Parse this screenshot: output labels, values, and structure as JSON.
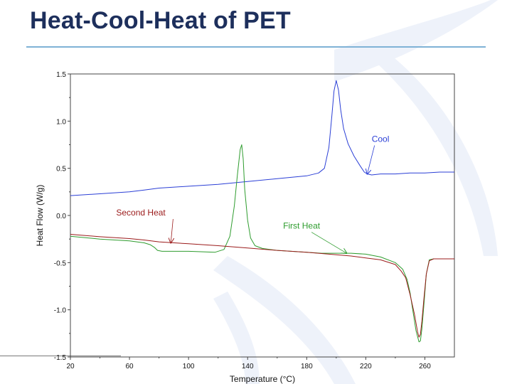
{
  "slide": {
    "title": "Heat-Cool-Heat of PET",
    "accent_color": "#1d2f5c",
    "rule_color": "#7fb2d6"
  },
  "chart_data": {
    "type": "line",
    "title": "",
    "xlabel": "Temperature (°C)",
    "ylabel": "Heat Flow (W/g)",
    "xlim": [
      20,
      280
    ],
    "ylim": [
      -1.5,
      1.5
    ],
    "x_ticks": [
      20,
      60,
      100,
      140,
      180,
      220,
      260
    ],
    "y_ticks": [
      1.5,
      1.0,
      0.5,
      0.0,
      -0.5,
      -1.0,
      -1.5
    ],
    "y_tick_labels": [
      "1.5",
      "1.0",
      "0.5",
      "0.0",
      "-0.5",
      "-1.0",
      "-1.5"
    ],
    "grid": false,
    "series": [
      {
        "name": "Cool",
        "color": "#2b3fd6",
        "points": [
          [
            20,
            0.21
          ],
          [
            40,
            0.23
          ],
          [
            60,
            0.25
          ],
          [
            70,
            0.27
          ],
          [
            80,
            0.29
          ],
          [
            100,
            0.31
          ],
          [
            120,
            0.33
          ],
          [
            140,
            0.36
          ],
          [
            160,
            0.39
          ],
          [
            180,
            0.42
          ],
          [
            188,
            0.45
          ],
          [
            192,
            0.5
          ],
          [
            195,
            0.72
          ],
          [
            197,
            1.05
          ],
          [
            198.5,
            1.32
          ],
          [
            200,
            1.43
          ],
          [
            201.5,
            1.33
          ],
          [
            203,
            1.12
          ],
          [
            205,
            0.92
          ],
          [
            208,
            0.76
          ],
          [
            212,
            0.63
          ],
          [
            216,
            0.53
          ],
          [
            219,
            0.46
          ],
          [
            221,
            0.44
          ],
          [
            224,
            0.43
          ],
          [
            230,
            0.44
          ],
          [
            240,
            0.44
          ],
          [
            250,
            0.45
          ],
          [
            260,
            0.45
          ],
          [
            270,
            0.46
          ],
          [
            280,
            0.46
          ]
        ]
      },
      {
        "name": "First Heat",
        "color": "#2e9c2e",
        "points": [
          [
            20,
            -0.22
          ],
          [
            40,
            -0.25
          ],
          [
            60,
            -0.27
          ],
          [
            70,
            -0.29
          ],
          [
            74,
            -0.31
          ],
          [
            77,
            -0.34
          ],
          [
            79,
            -0.37
          ],
          [
            82,
            -0.38
          ],
          [
            90,
            -0.38
          ],
          [
            100,
            -0.38
          ],
          [
            110,
            -0.385
          ],
          [
            118,
            -0.39
          ],
          [
            124,
            -0.36
          ],
          [
            128,
            -0.22
          ],
          [
            131,
            0.1
          ],
          [
            133,
            0.42
          ],
          [
            135,
            0.7
          ],
          [
            136,
            0.75
          ],
          [
            137,
            0.6
          ],
          [
            138,
            0.28
          ],
          [
            140,
            -0.05
          ],
          [
            142,
            -0.24
          ],
          [
            145,
            -0.32
          ],
          [
            150,
            -0.35
          ],
          [
            160,
            -0.37
          ],
          [
            180,
            -0.39
          ],
          [
            190,
            -0.4
          ],
          [
            200,
            -0.4
          ],
          [
            210,
            -0.4
          ],
          [
            220,
            -0.41
          ],
          [
            230,
            -0.44
          ],
          [
            240,
            -0.5
          ],
          [
            245,
            -0.57
          ],
          [
            248,
            -0.68
          ],
          [
            250,
            -0.82
          ],
          [
            252,
            -1.02
          ],
          [
            254,
            -1.22
          ],
          [
            256,
            -1.34
          ],
          [
            257,
            -1.33
          ],
          [
            258,
            -1.2
          ],
          [
            259.5,
            -0.92
          ],
          [
            261,
            -0.62
          ],
          [
            263,
            -0.47
          ],
          [
            266,
            -0.46
          ],
          [
            280,
            -0.46
          ]
        ]
      },
      {
        "name": "Second Heat",
        "color": "#9b1b1b",
        "points": [
          [
            20,
            -0.2
          ],
          [
            40,
            -0.225
          ],
          [
            60,
            -0.245
          ],
          [
            70,
            -0.26
          ],
          [
            80,
            -0.28
          ],
          [
            100,
            -0.3
          ],
          [
            120,
            -0.32
          ],
          [
            140,
            -0.345
          ],
          [
            160,
            -0.37
          ],
          [
            180,
            -0.39
          ],
          [
            195,
            -0.41
          ],
          [
            210,
            -0.43
          ],
          [
            220,
            -0.45
          ],
          [
            230,
            -0.47
          ],
          [
            240,
            -0.52
          ],
          [
            244,
            -0.59
          ],
          [
            247,
            -0.66
          ],
          [
            250,
            -0.84
          ],
          [
            253,
            -1.05
          ],
          [
            255,
            -1.23
          ],
          [
            256,
            -1.29
          ],
          [
            257,
            -1.26
          ],
          [
            258,
            -1.12
          ],
          [
            259.5,
            -0.86
          ],
          [
            261,
            -0.62
          ],
          [
            263,
            -0.48
          ],
          [
            266,
            -0.46
          ],
          [
            280,
            -0.46
          ]
        ]
      }
    ],
    "annotations": [
      {
        "text": "Cool",
        "color": "#2b3fd6",
        "label_at": [
          224,
          0.78
        ],
        "arrow_to": [
          221,
          0.44
        ],
        "anchor": "start"
      },
      {
        "text": "Second Heat",
        "color": "#9b1b1b",
        "label_at": [
          51,
          0.0
        ],
        "arrow_to": [
          88,
          -0.29
        ],
        "anchor": "start"
      },
      {
        "text": "First Heat",
        "color": "#2e9c2e",
        "label_at": [
          164,
          -0.14
        ],
        "arrow_to": [
          207,
          -0.4
        ],
        "anchor": "start"
      }
    ]
  }
}
